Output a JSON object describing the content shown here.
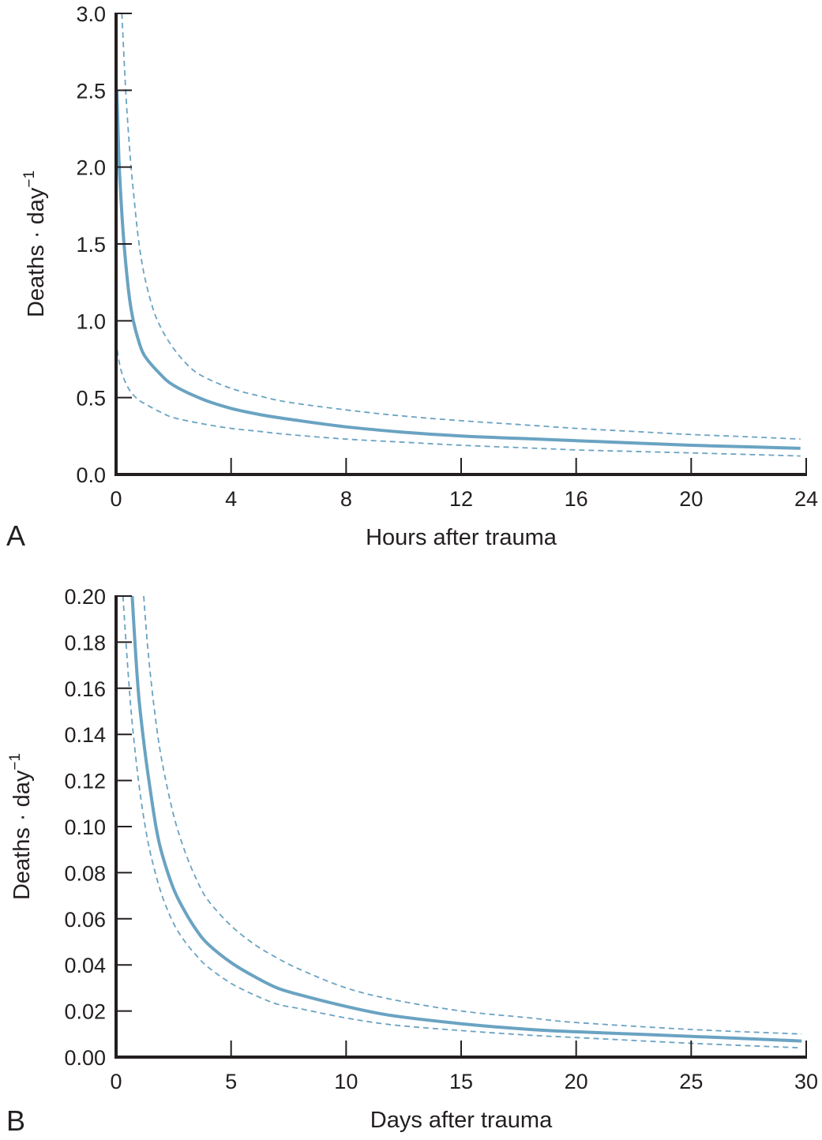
{
  "colors": {
    "curve": "#6aa3c2",
    "axis": "#231f20",
    "text": "#231f20"
  },
  "chart_data": [
    {
      "panel": "A",
      "type": "line",
      "title": "",
      "xlabel": "Hours after trauma",
      "ylabel": "Deaths · day",
      "ylabel_superscript": "−1",
      "xlim": [
        0,
        24
      ],
      "ylim": [
        0,
        3.0
      ],
      "xticks": [
        0,
        4,
        8,
        12,
        16,
        20,
        24
      ],
      "xtick_labels": [
        "0",
        "4",
        "8",
        "12",
        "16",
        "20",
        "24"
      ],
      "yticks": [
        0,
        0.5,
        1.0,
        1.5,
        2.0,
        2.5,
        3.0
      ],
      "ytick_labels": [
        "0.0",
        "0.5",
        "1.0",
        "1.5",
        "2.0",
        "2.5",
        "3.0"
      ],
      "grid": false,
      "legend": null,
      "series": [
        {
          "name": "estimate",
          "style": "solid",
          "x": [
            0.03,
            0.1,
            0.2,
            0.3,
            0.45,
            0.6,
            0.8,
            1.0,
            1.5,
            2,
            3,
            4,
            5,
            6,
            8,
            10,
            12,
            14,
            16,
            18,
            20,
            22,
            23.8
          ],
          "y": [
            2.5,
            2.05,
            1.7,
            1.45,
            1.17,
            1.0,
            0.86,
            0.77,
            0.66,
            0.58,
            0.49,
            0.43,
            0.39,
            0.36,
            0.31,
            0.275,
            0.25,
            0.235,
            0.22,
            0.205,
            0.19,
            0.18,
            0.17
          ]
        },
        {
          "name": "upper bound",
          "style": "dashed",
          "x": [
            0.2,
            0.35,
            0.5,
            0.65,
            0.8,
            1.0,
            1.3,
            1.6,
            2,
            2.5,
            3,
            4,
            5,
            6,
            8,
            10,
            12,
            14,
            16,
            18,
            20,
            22,
            23.8
          ],
          "y": [
            3.0,
            2.45,
            2.05,
            1.75,
            1.5,
            1.28,
            1.07,
            0.94,
            0.82,
            0.71,
            0.64,
            0.56,
            0.51,
            0.47,
            0.42,
            0.38,
            0.35,
            0.325,
            0.3,
            0.28,
            0.26,
            0.245,
            0.23
          ]
        },
        {
          "name": "lower bound",
          "style": "dashed",
          "x": [
            0.0,
            0.1,
            0.2,
            0.35,
            0.5,
            0.75,
            1.0,
            1.5,
            2,
            3,
            4,
            5,
            6,
            8,
            10,
            12,
            14,
            16,
            18,
            20,
            22,
            23.8
          ],
          "y": [
            0.87,
            0.74,
            0.66,
            0.59,
            0.54,
            0.49,
            0.46,
            0.41,
            0.37,
            0.33,
            0.3,
            0.28,
            0.26,
            0.23,
            0.21,
            0.19,
            0.175,
            0.16,
            0.15,
            0.14,
            0.13,
            0.12
          ]
        }
      ]
    },
    {
      "panel": "B",
      "type": "line",
      "title": "",
      "xlabel": "Days after trauma",
      "ylabel": "Deaths · day",
      "ylabel_superscript": "−1",
      "xlim": [
        0,
        30
      ],
      "ylim": [
        0,
        0.2
      ],
      "xticks": [
        0,
        5,
        10,
        15,
        20,
        25,
        30
      ],
      "xtick_labels": [
        "0",
        "5",
        "10",
        "15",
        "20",
        "25",
        "30"
      ],
      "yticks": [
        0,
        0.02,
        0.04,
        0.06,
        0.08,
        0.1,
        0.12,
        0.14,
        0.16,
        0.18,
        0.2
      ],
      "ytick_labels": [
        "0.00",
        "0.02",
        "0.04",
        "0.06",
        "0.08",
        "0.10",
        "0.12",
        "0.14",
        "0.16",
        "0.18",
        "0.20"
      ],
      "grid": false,
      "legend": null,
      "series": [
        {
          "name": "estimate",
          "style": "solid",
          "x": [
            0.7,
            0.85,
            1.0,
            1.25,
            1.5,
            1.75,
            2.0,
            2.5,
            3,
            3.5,
            4,
            5,
            6,
            7,
            8,
            10,
            12,
            15,
            18,
            20,
            25,
            29.8
          ],
          "y": [
            0.2,
            0.175,
            0.155,
            0.133,
            0.115,
            0.099,
            0.088,
            0.073,
            0.063,
            0.055,
            0.049,
            0.041,
            0.035,
            0.03,
            0.027,
            0.022,
            0.018,
            0.0145,
            0.012,
            0.011,
            0.009,
            0.007
          ]
        },
        {
          "name": "upper bound",
          "style": "dashed",
          "x": [
            1.2,
            1.4,
            1.7,
            2.0,
            2.5,
            3,
            3.5,
            4,
            5,
            6,
            7,
            8,
            10,
            12,
            15,
            18,
            20,
            25,
            29.8
          ],
          "y": [
            0.2,
            0.175,
            0.148,
            0.128,
            0.105,
            0.089,
            0.077,
            0.068,
            0.057,
            0.049,
            0.043,
            0.038,
            0.03,
            0.025,
            0.02,
            0.017,
            0.015,
            0.012,
            0.01
          ]
        },
        {
          "name": "lower bound",
          "style": "dashed",
          "x": [
            0.3,
            0.5,
            0.7,
            1.0,
            1.3,
            1.6,
            2.0,
            2.5,
            3,
            3.5,
            4,
            5,
            6,
            7,
            8,
            10,
            12,
            15,
            18,
            20,
            25,
            29.8
          ],
          "y": [
            0.2,
            0.17,
            0.145,
            0.118,
            0.098,
            0.084,
            0.07,
            0.058,
            0.05,
            0.044,
            0.039,
            0.032,
            0.027,
            0.023,
            0.021,
            0.017,
            0.014,
            0.0115,
            0.0095,
            0.0085,
            0.006,
            0.004
          ]
        }
      ]
    }
  ],
  "panels": [
    {
      "letter": "A",
      "xlabel": "Hours after trauma",
      "ylabel": "Deaths · day",
      "ylabel_sup": "−1"
    },
    {
      "letter": "B",
      "xlabel": "Days after trauma",
      "ylabel": "Deaths · day",
      "ylabel_sup": "−1"
    }
  ]
}
